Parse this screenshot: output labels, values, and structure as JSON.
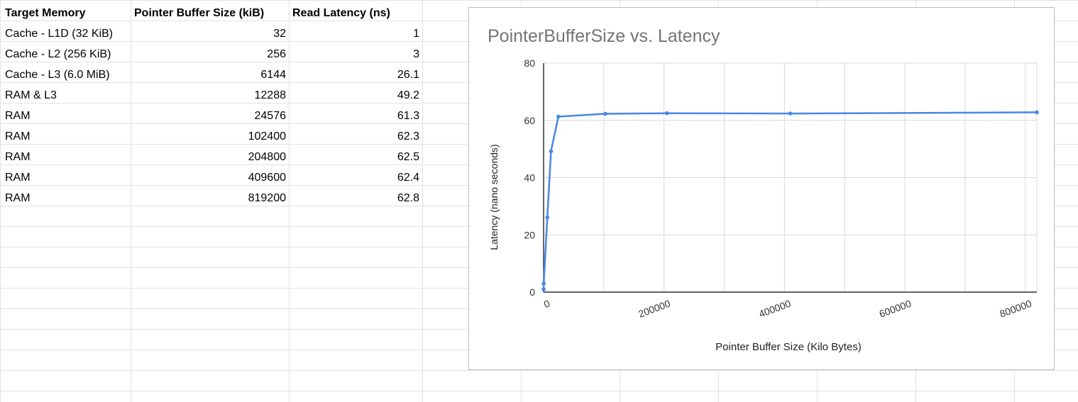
{
  "sheet": {
    "headers": [
      "Target Memory",
      "Pointer Buffer Size (kiB)",
      "Read Latency (ns)"
    ],
    "rows": [
      [
        "Cache - L1D (32 KiB)",
        "32",
        "1"
      ],
      [
        "Cache - L2 (256 KiB)",
        "256",
        "3"
      ],
      [
        "Cache - L3 (6.0 MiB)",
        "6144",
        "26.1"
      ],
      [
        "RAM & L3",
        "12288",
        "49.2"
      ],
      [
        "RAM",
        "24576",
        "61.3"
      ],
      [
        "RAM",
        "102400",
        "62.3"
      ],
      [
        "RAM",
        "204800",
        "62.5"
      ],
      [
        "RAM",
        "409600",
        "62.4"
      ],
      [
        "RAM",
        "819200",
        "62.8"
      ]
    ]
  },
  "chart_data": {
    "type": "line",
    "title": "PointerBufferSize vs. Latency",
    "xlabel": "Pointer Buffer Size (Kilo Bytes)",
    "ylabel": "Latency (nano seconds)",
    "x": [
      32,
      256,
      6144,
      12288,
      24576,
      102400,
      204800,
      409600,
      819200
    ],
    "series": [
      {
        "values": [
          1,
          3,
          26.1,
          49.2,
          61.3,
          62.3,
          62.5,
          62.4,
          62.8
        ]
      }
    ],
    "xlim": [
      0,
      819200
    ],
    "ylim": [
      0,
      80
    ],
    "x_ticks": [
      "0",
      "200000",
      "400000",
      "600000",
      "800000"
    ],
    "y_ticks": [
      "0",
      "20",
      "40",
      "60",
      "80"
    ],
    "x_tick_values": [
      0,
      200000,
      400000,
      600000,
      800000
    ],
    "y_tick_values": [
      0,
      20,
      40,
      60,
      80
    ],
    "grid": true,
    "line_color": "#4a86e8",
    "grid_color": "#d9d9d9"
  }
}
